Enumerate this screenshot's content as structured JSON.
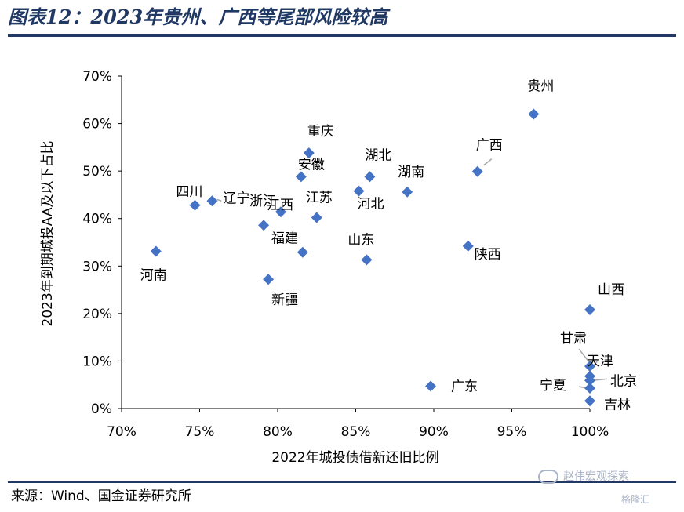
{
  "header": {
    "title": "图表12：2023年贵州、广西等尾部风险较高"
  },
  "footer": {
    "source": "来源：Wind、国金证券研究所"
  },
  "watermark": {
    "text": "赵伟宏观探索",
    "secondary": "格隆汇"
  },
  "chart_data": {
    "type": "scatter",
    "xlabel": "2022年城投债借新还旧比例",
    "ylabel": "2023年到期城投AA及以下占比",
    "xlim": [
      0.7,
      1.0
    ],
    "ylim": [
      0.0,
      0.7
    ],
    "x_ticks": [
      "70%",
      "75%",
      "80%",
      "85%",
      "90%",
      "95%",
      "100%"
    ],
    "y_ticks": [
      "0%",
      "10%",
      "20%",
      "30%",
      "40%",
      "50%",
      "60%",
      "70%"
    ],
    "marker_color": "#4472c4",
    "grid": false,
    "points": [
      {
        "name": "贵州",
        "x": 0.964,
        "y": 0.62
      },
      {
        "name": "重庆",
        "x": 0.82,
        "y": 0.538
      },
      {
        "name": "广西",
        "x": 0.928,
        "y": 0.499
      },
      {
        "name": "湖北",
        "x": 0.859,
        "y": 0.488
      },
      {
        "name": "安徽",
        "x": 0.815,
        "y": 0.488
      },
      {
        "name": "河北",
        "x": 0.852,
        "y": 0.458
      },
      {
        "name": "湖南",
        "x": 0.883,
        "y": 0.456
      },
      {
        "name": "辽宁",
        "x": 0.758,
        "y": 0.437
      },
      {
        "name": "四川",
        "x": 0.747,
        "y": 0.428
      },
      {
        "name": "浙江",
        "x": 0.802,
        "y": 0.414
      },
      {
        "name": "江苏",
        "x": 0.825,
        "y": 0.402
      },
      {
        "name": "江西",
        "x": 0.791,
        "y": 0.386
      },
      {
        "name": "陕西",
        "x": 0.922,
        "y": 0.342
      },
      {
        "name": "河南",
        "x": 0.722,
        "y": 0.331
      },
      {
        "name": "福建",
        "x": 0.816,
        "y": 0.329
      },
      {
        "name": "山东",
        "x": 0.857,
        "y": 0.313
      },
      {
        "name": "新疆",
        "x": 0.794,
        "y": 0.272
      },
      {
        "name": "山西",
        "x": 1.0,
        "y": 0.208
      },
      {
        "name": "甘肃",
        "x": 1.0,
        "y": 0.089
      },
      {
        "name": "天津",
        "x": 1.0,
        "y": 0.068
      },
      {
        "name": "北京",
        "x": 1.0,
        "y": 0.059
      },
      {
        "name": "宁夏",
        "x": 1.0,
        "y": 0.043
      },
      {
        "name": "广东",
        "x": 0.898,
        "y": 0.047
      },
      {
        "name": "吉林",
        "x": 1.0,
        "y": 0.016
      }
    ]
  }
}
